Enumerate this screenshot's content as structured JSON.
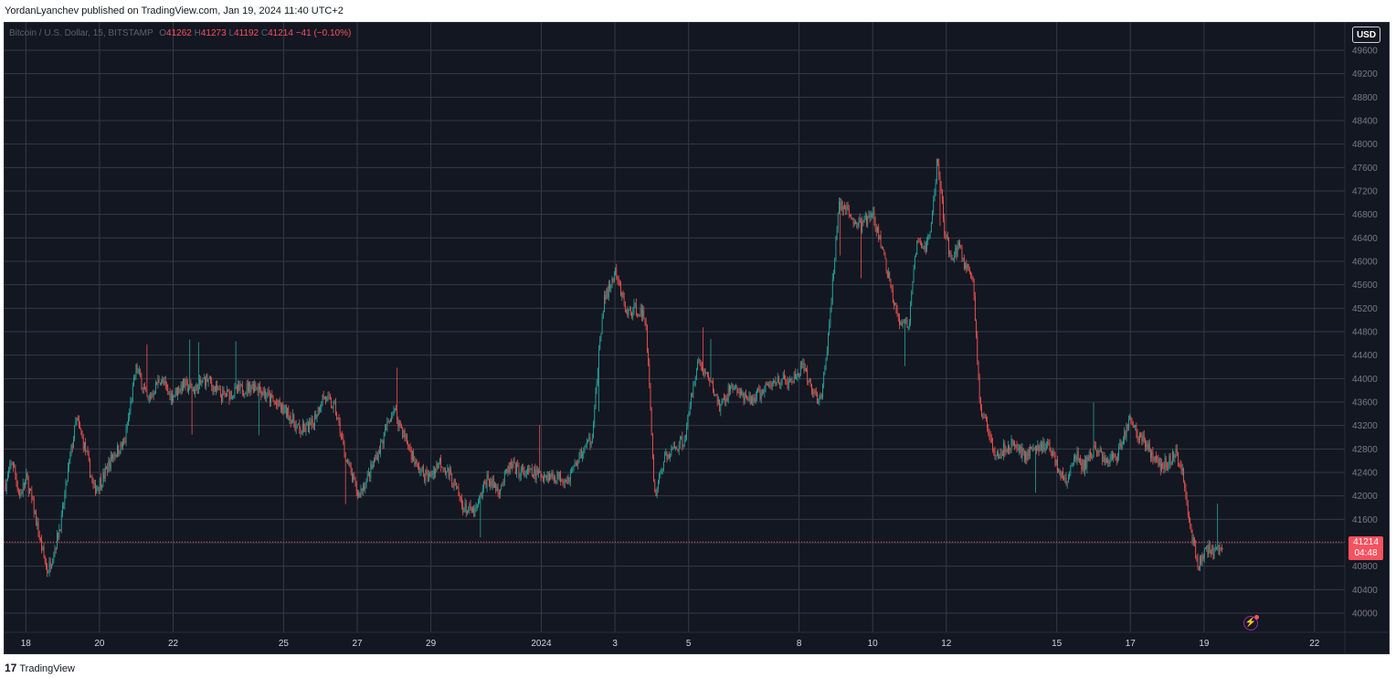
{
  "publish": {
    "text": "YordanLyanchev published on TradingView.com, Jan 19, 2024 11:40 UTC+2"
  },
  "legend": {
    "symbol": "Bitcoin / U.S. Dollar, 15, BITSTAMP",
    "o_label": "O",
    "o_value": "41262",
    "h_label": "H",
    "h_value": "41273",
    "l_label": "L",
    "l_value": "41192",
    "c_label": "C",
    "c_value": "41214",
    "change": "−41 (−0.10%)"
  },
  "currency_button": "USD",
  "price_badge": {
    "price": "41214",
    "countdown": "04:48"
  },
  "footer": {
    "brand_mark": "17",
    "brand": "TradingView"
  },
  "colors": {
    "background": "#131722",
    "grid": "#363a45",
    "up": "#26a69a",
    "down": "#ef5350",
    "badge": "#f7525f"
  },
  "chart_data": {
    "type": "candlestick",
    "title": "Bitcoin / U.S. Dollar, 15, BITSTAMP",
    "y_axis": {
      "min": 40000,
      "max": 49600,
      "step": 400
    },
    "x_ticks": [
      "18",
      "20",
      "22",
      "25",
      "27",
      "29",
      "2024",
      "3",
      "5",
      "8",
      "10",
      "12",
      "15",
      "17",
      "19",
      "22"
    ],
    "last_price": 41214,
    "grid": true,
    "series_path": [
      [
        "Dec 17",
        42200
      ],
      [
        "Dec 17",
        42600
      ],
      [
        "Dec 17",
        42000
      ],
      [
        "Dec 17",
        42300
      ],
      [
        "Dec 17",
        41800
      ],
      [
        "Dec 18",
        41200
      ],
      [
        "Dec 18",
        40700
      ],
      [
        "Dec 18",
        41100
      ],
      [
        "Dec 18",
        41600
      ],
      [
        "Dec 18",
        42500
      ],
      [
        "Dec 19",
        43300
      ],
      [
        "Dec 19",
        42800
      ],
      [
        "Dec 19",
        42100
      ],
      [
        "Dec 19",
        42300
      ],
      [
        "Dec 20",
        42700
      ],
      [
        "Dec 20",
        42900
      ],
      [
        "Dec 20",
        44200
      ],
      [
        "Dec 21",
        43600
      ],
      [
        "Dec 21",
        44000
      ],
      [
        "Dec 21",
        43700
      ],
      [
        "Dec 22",
        43900
      ],
      [
        "Dec 22",
        43800
      ],
      [
        "Dec 22",
        44000
      ],
      [
        "Dec 23",
        43700
      ],
      [
        "Dec 23",
        43800
      ],
      [
        "Dec 24",
        43900
      ],
      [
        "Dec 24",
        43600
      ],
      [
        "Dec 25",
        43400
      ],
      [
        "Dec 25",
        43100
      ],
      [
        "Dec 25",
        43200
      ],
      [
        "Dec 26",
        43700
      ],
      [
        "Dec 26",
        43500
      ],
      [
        "Dec 26",
        42600
      ],
      [
        "Dec 27",
        42000
      ],
      [
        "Dec 27",
        42400
      ],
      [
        "Dec 27",
        42900
      ],
      [
        "Dec 28",
        43500
      ],
      [
        "Dec 28",
        43000
      ],
      [
        "Dec 28",
        42500
      ],
      [
        "Dec 29",
        42300
      ],
      [
        "Dec 29",
        42600
      ],
      [
        "Dec 29",
        42300
      ],
      [
        "Dec 30",
        41800
      ],
      [
        "Dec 30",
        41700
      ],
      [
        "Dec 30",
        42300
      ],
      [
        "Dec 31",
        42100
      ],
      [
        "Dec 31",
        42500
      ],
      [
        "Dec 31",
        42400
      ],
      [
        "Jan 1",
        42300
      ],
      [
        "Jan 1",
        42700
      ],
      [
        "Jan 1",
        43000
      ],
      [
        "Jan 2",
        45300
      ],
      [
        "Jan 2",
        45800
      ],
      [
        "Jan 2",
        45100
      ],
      [
        "Jan 3",
        45200
      ],
      [
        "Jan 3",
        45000
      ],
      [
        "Jan 3",
        42000
      ],
      [
        "Jan 3",
        42600
      ],
      [
        "Jan 4",
        42800
      ],
      [
        "Jan 4",
        43000
      ],
      [
        "Jan 4",
        44300
      ],
      [
        "Jan 5",
        44000
      ],
      [
        "Jan 5",
        43500
      ],
      [
        "Jan 5",
        43900
      ],
      [
        "Jan 6",
        43600
      ],
      [
        "Jan 6",
        43800
      ],
      [
        "Jan 7",
        44000
      ],
      [
        "Jan 7",
        43900
      ],
      [
        "Jan 7",
        44200
      ],
      [
        "Jan 8",
        43800
      ],
      [
        "Jan 8",
        43600
      ],
      [
        "Jan 8",
        45000
      ],
      [
        "Jan 8",
        47000
      ],
      [
        "Jan 9",
        46800
      ],
      [
        "Jan 9",
        46600
      ],
      [
        "Jan 9",
        46800
      ],
      [
        "Jan 10",
        46200
      ],
      [
        "Jan 10",
        45500
      ],
      [
        "Jan 10",
        45000
      ],
      [
        "Jan 10",
        44900
      ],
      [
        "Jan 11",
        46300
      ],
      [
        "Jan 11",
        46200
      ],
      [
        "Jan 11",
        46500
      ],
      [
        "Jan 11",
        47800
      ],
      [
        "Jan 11",
        46500
      ],
      [
        "Jan 12",
        46000
      ],
      [
        "Jan 12",
        46300
      ],
      [
        "Jan 12",
        45900
      ],
      [
        "Jan 12",
        45800
      ],
      [
        "Jan 12",
        43500
      ],
      [
        "Jan 13",
        43200
      ],
      [
        "Jan 13",
        42700
      ],
      [
        "Jan 13",
        42800
      ],
      [
        "Jan 13",
        42900
      ],
      [
        "Jan 14",
        42700
      ],
      [
        "Jan 14",
        42800
      ],
      [
        "Jan 14",
        42900
      ],
      [
        "Jan 15",
        42500
      ],
      [
        "Jan 15",
        42200
      ],
      [
        "Jan 15",
        42700
      ],
      [
        "Jan 15",
        42500
      ],
      [
        "Jan 16",
        42800
      ],
      [
        "Jan 16",
        42600
      ],
      [
        "Jan 16",
        42700
      ],
      [
        "Jan 17",
        43300
      ],
      [
        "Jan 17",
        43000
      ],
      [
        "Jan 17",
        42700
      ],
      [
        "Jan 18",
        42500
      ],
      [
        "Jan 18",
        42600
      ],
      [
        "Jan 18",
        42700
      ],
      [
        "Jan 18",
        42400
      ],
      [
        "Jan 18",
        41500
      ],
      [
        "Jan 19",
        40800
      ],
      [
        "Jan 19",
        41100
      ],
      [
        "Jan 19",
        41000
      ],
      [
        "Jan 19",
        41214
      ]
    ]
  }
}
